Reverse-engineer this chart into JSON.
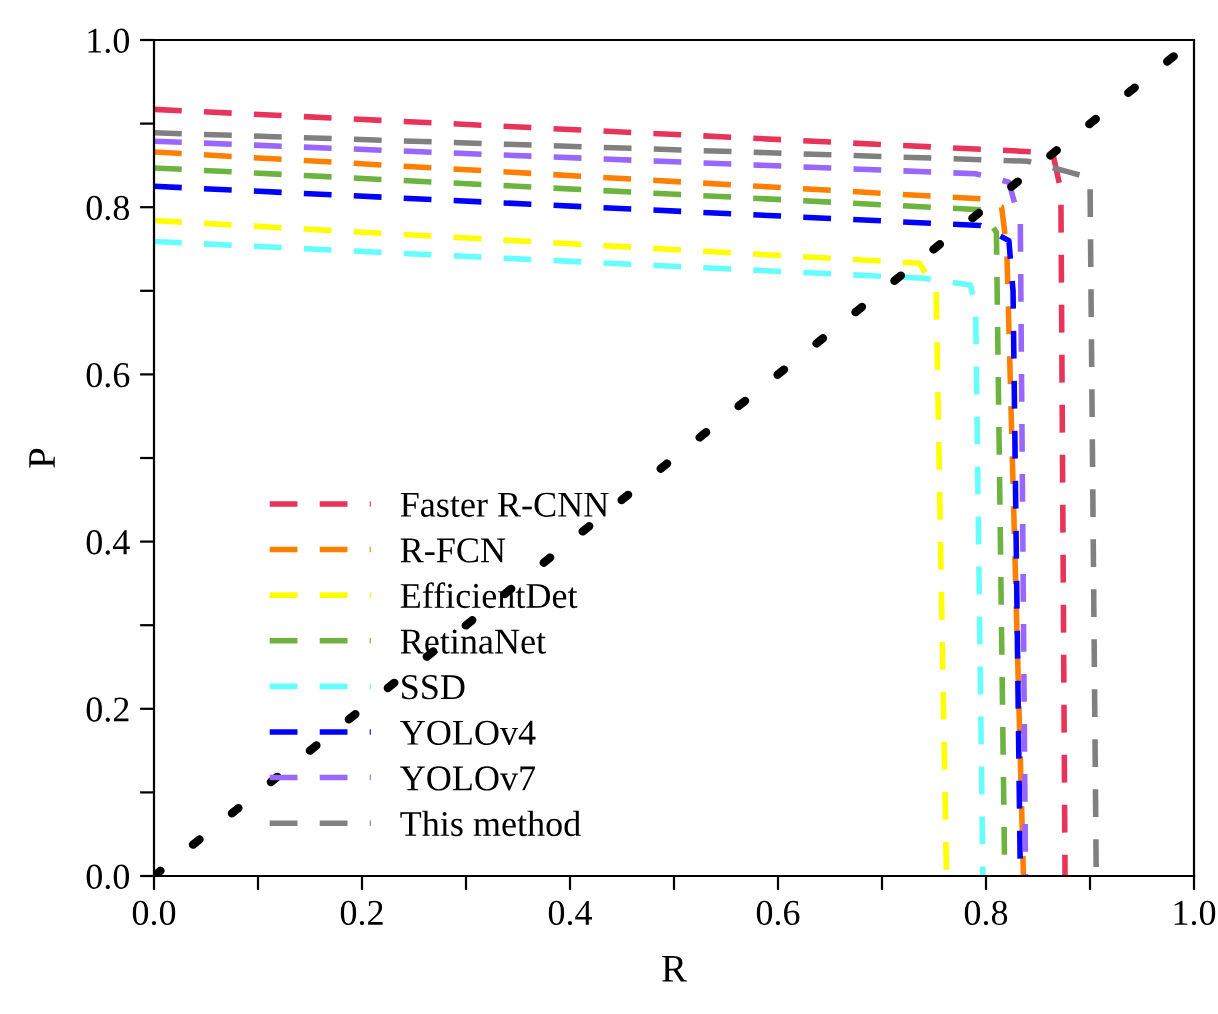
{
  "chart_data": {
    "type": "line",
    "xlabel": "R",
    "ylabel": "P",
    "xlim": [
      0.0,
      1.0
    ],
    "ylim": [
      0.0,
      1.0
    ],
    "xticks": [
      {
        "value": 0.0,
        "label": "0.0"
      },
      {
        "value": 0.1,
        "label": null
      },
      {
        "value": 0.2,
        "label": "0.2"
      },
      {
        "value": 0.3,
        "label": null
      },
      {
        "value": 0.4,
        "label": "0.4"
      },
      {
        "value": 0.5,
        "label": null
      },
      {
        "value": 0.6,
        "label": "0.6"
      },
      {
        "value": 0.7,
        "label": null
      },
      {
        "value": 0.8,
        "label": "0.8"
      },
      {
        "value": 0.9,
        "label": null
      },
      {
        "value": 1.0,
        "label": "1.0"
      }
    ],
    "yticks": [
      {
        "value": 0.0,
        "label": "0.0"
      },
      {
        "value": 0.1,
        "label": null
      },
      {
        "value": 0.2,
        "label": "0.2"
      },
      {
        "value": 0.3,
        "label": null
      },
      {
        "value": 0.4,
        "label": "0.4"
      },
      {
        "value": 0.5,
        "label": null
      },
      {
        "value": 0.6,
        "label": "0.6"
      },
      {
        "value": 0.7,
        "label": null
      },
      {
        "value": 0.8,
        "label": "0.8"
      },
      {
        "value": 0.9,
        "label": null
      },
      {
        "value": 1.0,
        "label": "1.0"
      }
    ],
    "grid": false,
    "legend": "bottom left",
    "line_style": "dashed",
    "marker": "none",
    "series": [
      {
        "name": "Faster R-CNN",
        "color": "#e8335a",
        "x": [
          0.0,
          0.85,
          0.865,
          0.872,
          0.876
        ],
        "values": [
          0.917,
          0.866,
          0.86,
          0.82,
          0.0
        ]
      },
      {
        "name": "R-FCN",
        "color": "#ff8000",
        "x": [
          0.0,
          0.795,
          0.815,
          0.82,
          0.836
        ],
        "values": [
          0.866,
          0.81,
          0.8,
          0.75,
          0.0
        ]
      },
      {
        "name": "EfficientDet",
        "color": "#ffff00",
        "x": [
          0.0,
          0.736,
          0.752,
          0.762
        ],
        "values": [
          0.784,
          0.733,
          0.7,
          0.0
        ]
      },
      {
        "name": "RetinaNet",
        "color": "#6db33f",
        "x": [
          0.0,
          0.795,
          0.81,
          0.818
        ],
        "values": [
          0.847,
          0.797,
          0.77,
          0.0
        ]
      },
      {
        "name": "SSD",
        "color": "#66ffff",
        "x": [
          0.0,
          0.74,
          0.785,
          0.79,
          0.797
        ],
        "values": [
          0.759,
          0.715,
          0.707,
          0.68,
          0.0
        ]
      },
      {
        "name": "YOLOv4",
        "color": "#0000ff",
        "x": [
          0.0,
          0.795,
          0.822,
          0.826,
          0.833
        ],
        "values": [
          0.825,
          0.778,
          0.76,
          0.7,
          0.0
        ]
      },
      {
        "name": "YOLOv7",
        "color": "#9966ff",
        "x": [
          0.0,
          0.79,
          0.822,
          0.833,
          0.838
        ],
        "values": [
          0.879,
          0.84,
          0.83,
          0.78,
          0.0
        ]
      },
      {
        "name": "This method",
        "color": "#808080",
        "x": [
          0.0,
          0.84,
          0.88,
          0.9,
          0.906
        ],
        "values": [
          0.889,
          0.855,
          0.842,
          0.835,
          0.0
        ]
      },
      {
        "color": "#000000",
        "line_style": "dotted",
        "x": [
          0.0,
          1.0
        ],
        "values": [
          0.0,
          1.0
        ]
      }
    ]
  }
}
